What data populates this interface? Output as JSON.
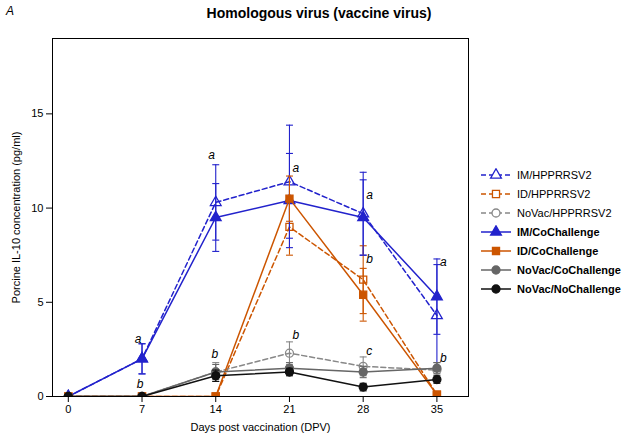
{
  "chart_data": {
    "type": "line",
    "title": "Homologous virus (vaccine virus)",
    "figure_label": "A",
    "xlabel": "Days post vaccination (DPV)",
    "ylabel": "Porcine IL-10 concentration (pg/ml)",
    "x": [
      0,
      7,
      14,
      21,
      28,
      35
    ],
    "series": [
      {
        "name": "IM/HPPRRSV2",
        "color": "#2222cc",
        "line_style": "dashed",
        "marker": "triangle-open",
        "values": [
          0,
          2.0,
          10.3,
          11.4,
          9.7,
          4.3
        ],
        "errors": [
          0,
          0.8,
          2.0,
          3.0,
          2.2,
          2.7
        ]
      },
      {
        "name": "ID/HPPRRSV2",
        "color": "#cc5500",
        "line_style": "dashed",
        "marker": "square-open",
        "values": [
          0,
          0,
          0,
          9.0,
          6.2,
          0.1
        ],
        "errors": [
          0,
          0,
          0,
          1.5,
          1.8,
          0.1
        ]
      },
      {
        "name": "NoVac/HPPRRSV2",
        "color": "#888888",
        "line_style": "dashed",
        "marker": "circle-open",
        "values": [
          0,
          0,
          1.3,
          2.3,
          1.6,
          1.4
        ],
        "errors": [
          0,
          0,
          0.5,
          0.6,
          0.5,
          0.4
        ]
      },
      {
        "name": "IM/CoChallenge",
        "color": "#2222cc",
        "line_style": "solid",
        "marker": "triangle",
        "values": [
          0,
          2.0,
          9.5,
          10.4,
          9.5,
          5.3
        ],
        "errors": [
          0,
          0.8,
          1.8,
          2.5,
          2.0,
          2.0
        ]
      },
      {
        "name": "ID/CoChallenge",
        "color": "#cc5500",
        "line_style": "solid",
        "marker": "square",
        "values": [
          0,
          0,
          0,
          10.5,
          5.4,
          0.1
        ],
        "errors": [
          0,
          0,
          0,
          1.2,
          1.4,
          0.1
        ]
      },
      {
        "name": "NoVac/CoChallenge",
        "color": "#666666",
        "line_style": "solid",
        "marker": "circle",
        "values": [
          0,
          0,
          1.3,
          1.5,
          1.3,
          1.5
        ],
        "errors": [
          0,
          0,
          0.4,
          0.3,
          0.3,
          0.3
        ]
      },
      {
        "name": "NoVac/NoChallenge",
        "color": "#111111",
        "line_style": "solid",
        "marker": "circle",
        "values": [
          0,
          0,
          1.1,
          1.3,
          0.5,
          0.9
        ],
        "errors": [
          0,
          0,
          0.3,
          0.2,
          0.2,
          0.2
        ]
      }
    ],
    "xlim": [
      -1.5,
      38
    ],
    "xticks": [
      0,
      7,
      14,
      21,
      28,
      35
    ],
    "ylim": [
      0,
      19
    ],
    "yticks": [
      0,
      5,
      10,
      15
    ],
    "grid": false,
    "legend": "right",
    "annotations": [
      {
        "x": 6.3,
        "y": 2.85,
        "text": "a"
      },
      {
        "x": 6.5,
        "y": 0.45,
        "text": "b"
      },
      {
        "x": 13.3,
        "y": 12.6,
        "text": "a"
      },
      {
        "x": 13.6,
        "y": 2.05,
        "text": "b"
      },
      {
        "x": 21.3,
        "y": 11.9,
        "text": "a"
      },
      {
        "x": 21.3,
        "y": 3.05,
        "text": "b"
      },
      {
        "x": 28.3,
        "y": 10.5,
        "text": "a"
      },
      {
        "x": 28.3,
        "y": 7.1,
        "text": "b"
      },
      {
        "x": 28.3,
        "y": 2.2,
        "text": "c"
      },
      {
        "x": 35.3,
        "y": 6.9,
        "text": "a"
      },
      {
        "x": 35.3,
        "y": 1.85,
        "text": "b"
      }
    ]
  }
}
